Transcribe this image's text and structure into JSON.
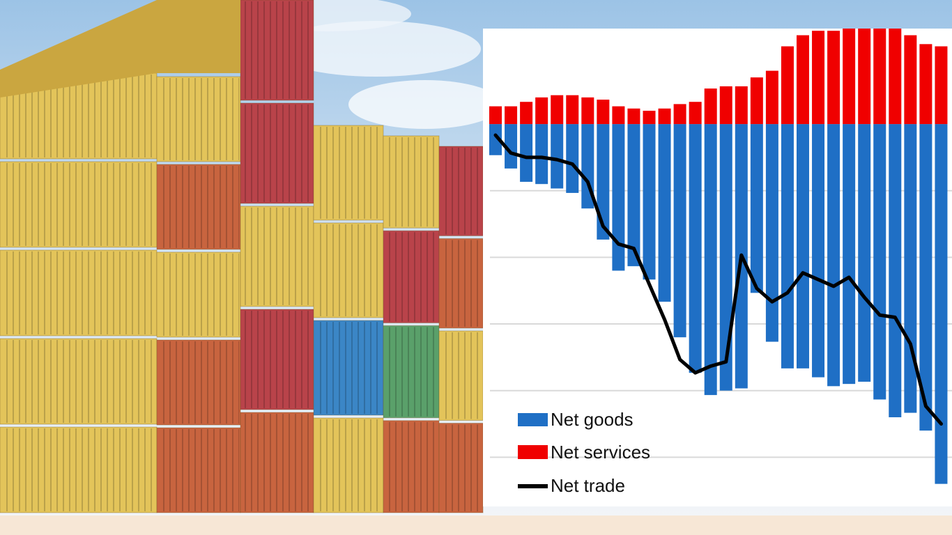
{
  "chart_data": {
    "type": "bar",
    "stacked": true,
    "title": "",
    "xlabel": "",
    "ylabel": "",
    "grid": true,
    "legend_position": "bottom-left",
    "n_periods": 30,
    "series": [
      {
        "name": "Net goods",
        "kind": "bar",
        "color": "#1f6fc5",
        "values": [
          -7,
          -10,
          -13,
          -13.5,
          -14.5,
          -15.5,
          -19,
          -26,
          -33,
          -32,
          -35,
          -40,
          -48,
          -56,
          -61,
          -60,
          -59.5,
          -38,
          -49,
          -55,
          -55,
          -57,
          -59,
          -58.5,
          -58,
          -62,
          -66,
          -65,
          -69,
          -81
        ]
      },
      {
        "name": "Net services",
        "kind": "bar",
        "color": "#f00000",
        "values": [
          4,
          4,
          5,
          6,
          6.5,
          6.5,
          6,
          5.5,
          4,
          3.5,
          3,
          3.5,
          4.5,
          5,
          8,
          8.5,
          8.5,
          10.5,
          12,
          17.5,
          20,
          21,
          21,
          21.5,
          21.5,
          21.5,
          21.5,
          20,
          18,
          17.5
        ]
      },
      {
        "name": "Net trade",
        "kind": "line",
        "color": "#000000",
        "values": [
          -2.5,
          -6.5,
          -7.5,
          -7.5,
          -8,
          -9,
          -13,
          -23,
          -27,
          -28,
          -36,
          -44,
          -53,
          -56,
          -54.5,
          -53.5,
          -29.5,
          -37,
          -40,
          -38,
          -33.5,
          -35,
          -36.5,
          -34.5,
          -39,
          -43,
          -43.5,
          -49.5,
          -63.5,
          -67.5
        ]
      }
    ],
    "ylim": [
      -82,
      21.5
    ],
    "gridline_values": [
      -15,
      -30,
      -45,
      -60,
      -75
    ]
  }
}
